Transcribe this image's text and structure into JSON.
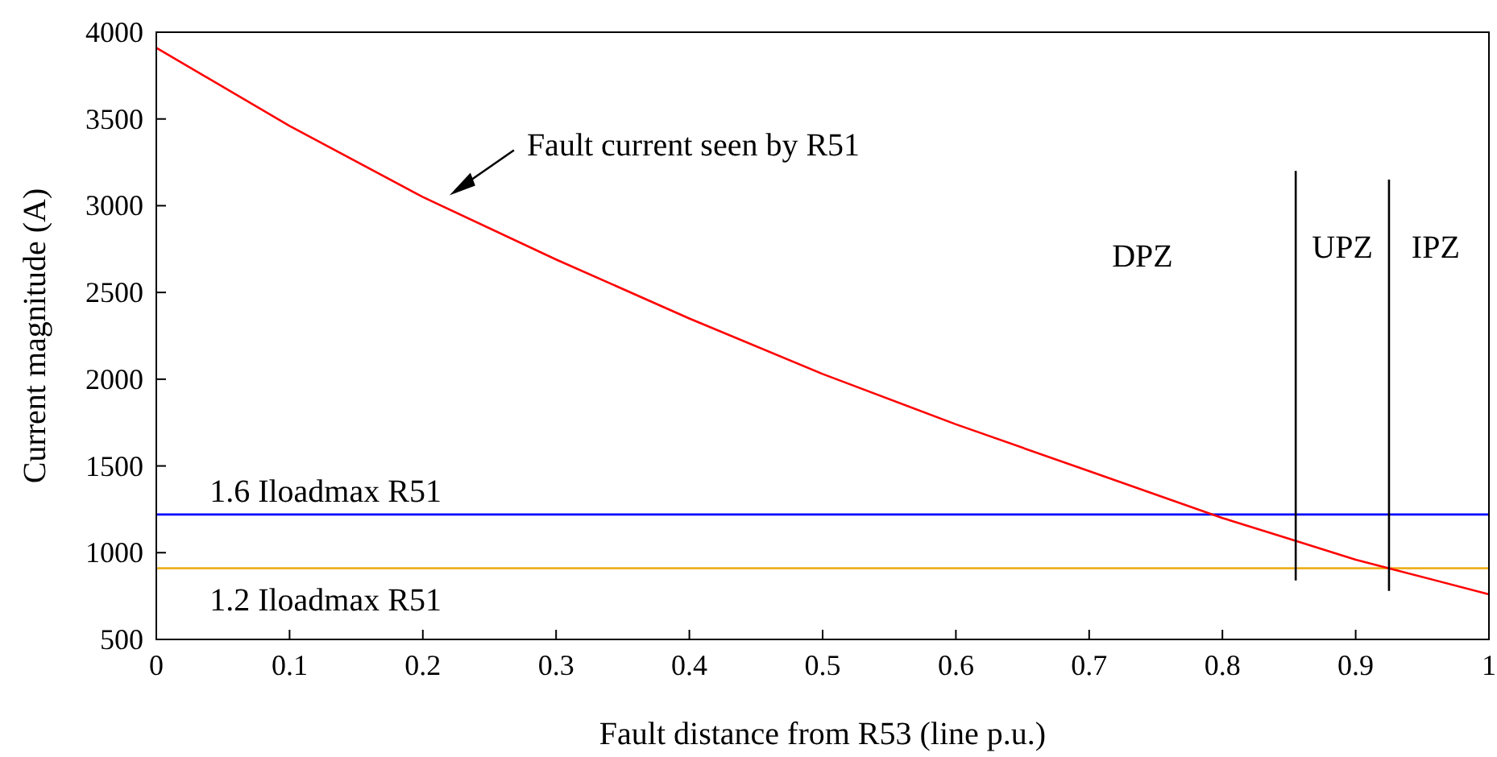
{
  "chart_data": {
    "type": "line",
    "xlabel": "Fault distance from R53 (line p.u.)",
    "ylabel": "Current magnitude (A)",
    "xlim": [
      0,
      1
    ],
    "xticks": [
      0,
      0.1,
      0.2,
      0.3,
      0.4,
      0.5,
      0.6,
      0.7,
      0.8,
      0.9,
      1
    ],
    "ylim": [
      500,
      4000
    ],
    "yticks": [
      500,
      1000,
      1500,
      2000,
      2500,
      3000,
      3500,
      4000
    ],
    "grid": false,
    "line_style": "solid",
    "series": [
      {
        "color": "#ff0000",
        "x": [
          0,
          0.1,
          0.2,
          0.3,
          0.4,
          0.5,
          0.6,
          0.7,
          0.8,
          0.85,
          0.9,
          0.925,
          1
        ],
        "values": [
          3910,
          3460,
          3050,
          2690,
          2350,
          2030,
          1740,
          1470,
          1200,
          1080,
          960,
          910,
          760
        ]
      },
      {
        "color": "#000000",
        "x": [
          0.855,
          0.855
        ],
        "values": [
          840,
          3200
        ]
      },
      {
        "color": "#000000",
        "x": [
          0.925,
          0.925
        ],
        "values": [
          780,
          3150
        ]
      }
    ],
    "ref_lines": [
      {
        "axis": "y",
        "value": 1220,
        "label": "1.6 Iloadmax R51",
        "color": "#0000ff"
      },
      {
        "axis": "y",
        "value": 910,
        "label": "1.2 Iloadmax R51",
        "color": "#edb120"
      }
    ],
    "annotations": [
      "Fault current seen by R51",
      "DPZ",
      "UPZ",
      "IPZ"
    ]
  }
}
